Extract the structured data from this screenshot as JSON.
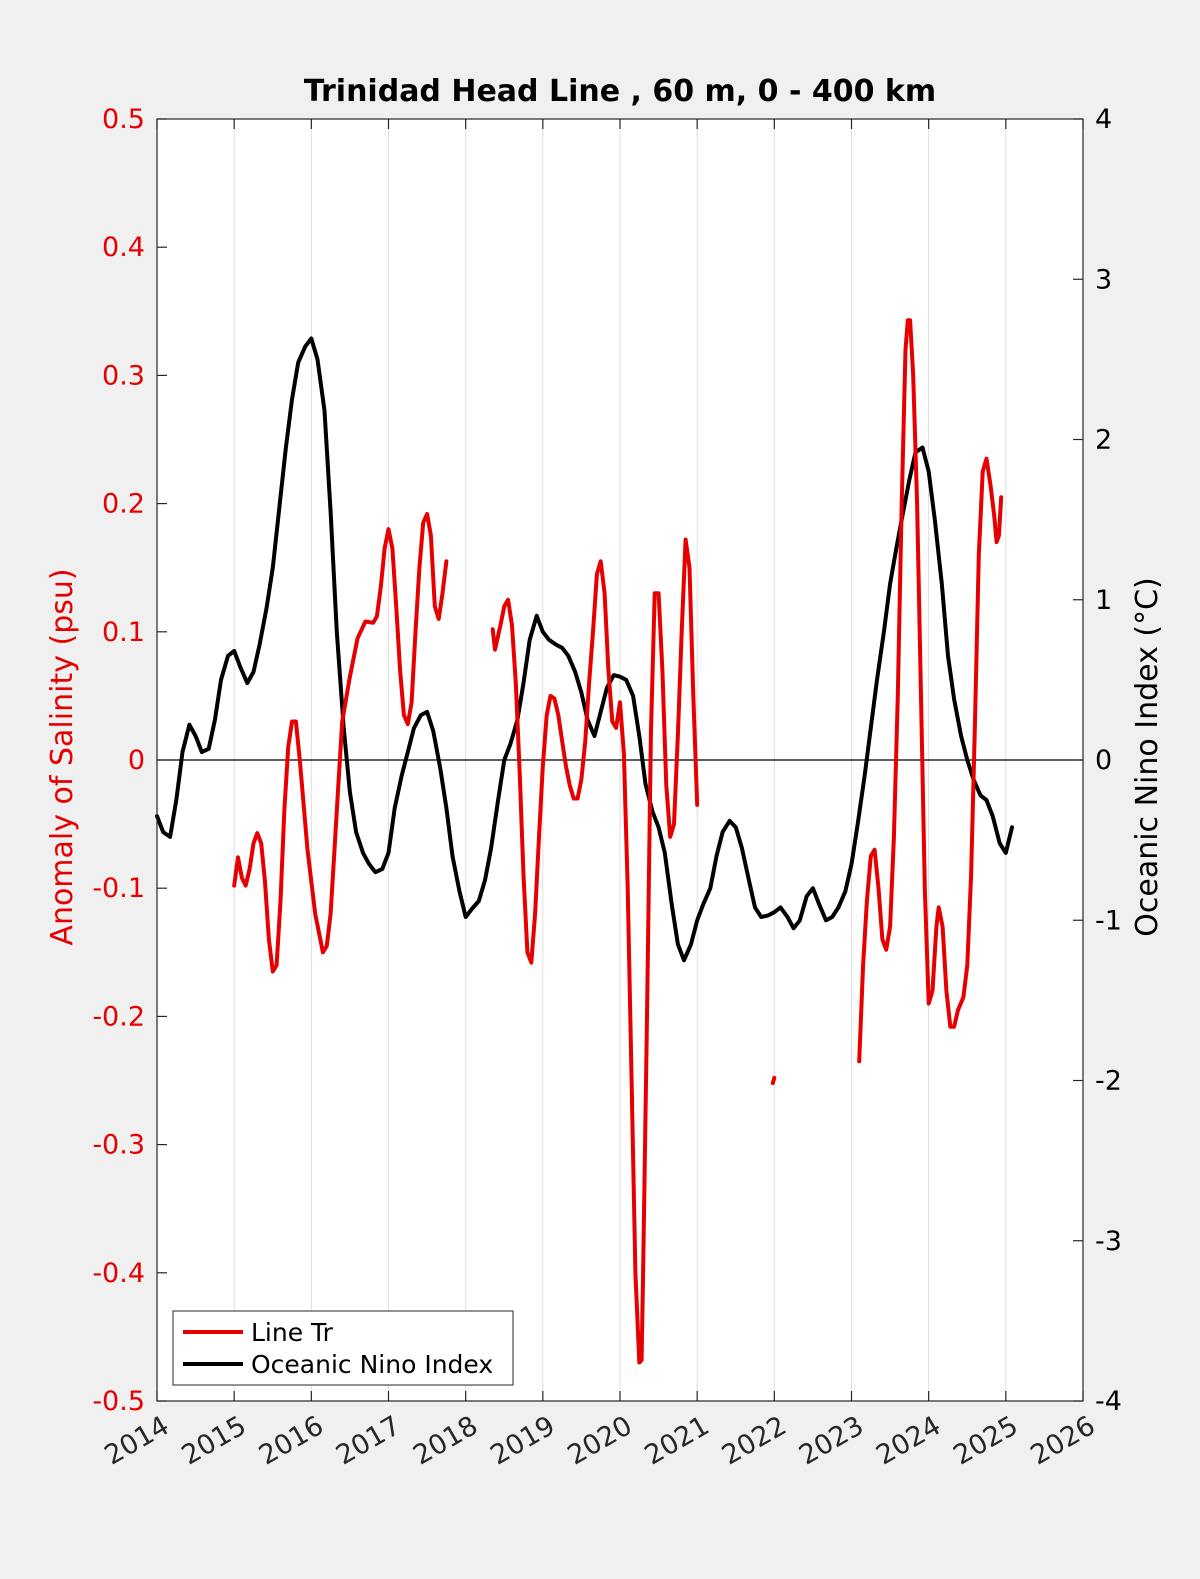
{
  "chart_data": {
    "type": "line",
    "title": "Trinidad Head Line , 60 m, 0 - 400 km",
    "xlabel": "",
    "ylabel_left": "Anomaly of Salinity (psu)",
    "ylabel_right": "Oceanic Nino Index (°C)",
    "xlim": [
      2014,
      2026
    ],
    "ylim_left": [
      -0.5,
      0.5
    ],
    "ylim_right": [
      -4,
      4
    ],
    "x_ticks": [
      "2014",
      "2015",
      "2016",
      "2017",
      "2018",
      "2019",
      "2020",
      "2021",
      "2022",
      "2023",
      "2024",
      "2025",
      "2026"
    ],
    "y_ticks_left": [
      "0.5",
      "0.4",
      "0.3",
      "0.2",
      "0.1",
      "0",
      "-0.1",
      "-0.2",
      "-0.3",
      "-0.4",
      "-0.5"
    ],
    "y_ticks_right": [
      "4",
      "3",
      "2",
      "1",
      "0",
      "-1",
      "-2",
      "-3",
      "-4"
    ],
    "grid_x": true,
    "zero_line": true,
    "legend_position": "bottom-left",
    "colors": {
      "salinity": "#e60000",
      "oni": "#000000",
      "left_axis": "#e60000",
      "right_axis": "#000000"
    },
    "series": [
      {
        "name": "Line Tr",
        "axis": "left",
        "segments": [
          [
            [
              2015.0,
              -0.098
            ],
            [
              2015.05,
              -0.076
            ],
            [
              2015.1,
              -0.092
            ],
            [
              2015.15,
              -0.098
            ],
            [
              2015.2,
              -0.085
            ],
            [
              2015.25,
              -0.065
            ],
            [
              2015.3,
              -0.057
            ],
            [
              2015.35,
              -0.065
            ],
            [
              2015.4,
              -0.095
            ],
            [
              2015.45,
              -0.14
            ],
            [
              2015.5,
              -0.165
            ],
            [
              2015.55,
              -0.16
            ],
            [
              2015.6,
              -0.11
            ],
            [
              2015.65,
              -0.04
            ],
            [
              2015.7,
              0.01
            ],
            [
              2015.75,
              0.03
            ],
            [
              2015.8,
              0.03
            ],
            [
              2015.85,
              0.0
            ],
            [
              2015.95,
              -0.07
            ],
            [
              2016.05,
              -0.12
            ],
            [
              2016.15,
              -0.15
            ],
            [
              2016.2,
              -0.145
            ],
            [
              2016.25,
              -0.12
            ],
            [
              2016.3,
              -0.07
            ],
            [
              2016.35,
              -0.02
            ],
            [
              2016.4,
              0.03
            ],
            [
              2016.5,
              0.065
            ],
            [
              2016.6,
              0.095
            ],
            [
              2016.7,
              0.108
            ],
            [
              2016.8,
              0.107
            ],
            [
              2016.85,
              0.112
            ],
            [
              2016.9,
              0.135
            ],
            [
              2016.95,
              0.165
            ],
            [
              2017.0,
              0.18
            ],
            [
              2017.05,
              0.165
            ],
            [
              2017.1,
              0.12
            ],
            [
              2017.15,
              0.07
            ],
            [
              2017.2,
              0.035
            ],
            [
              2017.25,
              0.028
            ],
            [
              2017.3,
              0.045
            ],
            [
              2017.35,
              0.1
            ],
            [
              2017.4,
              0.15
            ],
            [
              2017.45,
              0.185
            ],
            [
              2017.5,
              0.192
            ],
            [
              2017.55,
              0.175
            ],
            [
              2017.6,
              0.12
            ],
            [
              2017.65,
              0.11
            ],
            [
              2017.7,
              0.13
            ],
            [
              2017.75,
              0.155
            ]
          ],
          [
            [
              2018.35,
              0.102
            ],
            [
              2018.38,
              0.086
            ],
            [
              2018.45,
              0.105
            ],
            [
              2018.5,
              0.12
            ],
            [
              2018.55,
              0.125
            ],
            [
              2018.6,
              0.105
            ],
            [
              2018.65,
              0.06
            ],
            [
              2018.7,
              -0.01
            ],
            [
              2018.75,
              -0.09
            ],
            [
              2018.8,
              -0.15
            ],
            [
              2018.85,
              -0.158
            ],
            [
              2018.9,
              -0.12
            ],
            [
              2018.95,
              -0.06
            ],
            [
              2019.0,
              -0.005
            ],
            [
              2019.05,
              0.035
            ],
            [
              2019.1,
              0.05
            ],
            [
              2019.15,
              0.048
            ],
            [
              2019.2,
              0.035
            ],
            [
              2019.25,
              0.015
            ],
            [
              2019.3,
              -0.005
            ],
            [
              2019.35,
              -0.02
            ],
            [
              2019.4,
              -0.03
            ],
            [
              2019.45,
              -0.03
            ],
            [
              2019.5,
              -0.015
            ],
            [
              2019.55,
              0.015
            ],
            [
              2019.6,
              0.06
            ],
            [
              2019.65,
              0.1
            ],
            [
              2019.7,
              0.145
            ],
            [
              2019.75,
              0.155
            ],
            [
              2019.8,
              0.13
            ],
            [
              2019.85,
              0.07
            ],
            [
              2019.9,
              0.03
            ],
            [
              2019.95,
              0.025
            ],
            [
              2020.0,
              0.045
            ],
            [
              2020.05,
              0.005
            ],
            [
              2020.1,
              -0.1
            ],
            [
              2020.15,
              -0.25
            ],
            [
              2020.2,
              -0.4
            ],
            [
              2020.25,
              -0.47
            ],
            [
              2020.28,
              -0.468
            ],
            [
              2020.3,
              -0.4
            ],
            [
              2020.35,
              -0.2
            ],
            [
              2020.4,
              0.02
            ],
            [
              2020.45,
              0.13
            ],
            [
              2020.5,
              0.13
            ],
            [
              2020.55,
              0.07
            ],
            [
              2020.6,
              -0.02
            ],
            [
              2020.65,
              -0.06
            ],
            [
              2020.7,
              -0.05
            ],
            [
              2020.75,
              0.02
            ],
            [
              2020.8,
              0.1
            ],
            [
              2020.85,
              0.172
            ],
            [
              2020.9,
              0.15
            ],
            [
              2020.95,
              0.05
            ],
            [
              2021.0,
              -0.035
            ]
          ],
          [
            [
              2021.98,
              -0.252
            ],
            [
              2022.0,
              -0.248
            ]
          ],
          [
            [
              2023.1,
              -0.235
            ],
            [
              2023.15,
              -0.16
            ],
            [
              2023.2,
              -0.11
            ],
            [
              2023.25,
              -0.075
            ],
            [
              2023.3,
              -0.07
            ],
            [
              2023.35,
              -0.1
            ],
            [
              2023.4,
              -0.14
            ],
            [
              2023.45,
              -0.148
            ],
            [
              2023.5,
              -0.13
            ],
            [
              2023.55,
              -0.06
            ],
            [
              2023.6,
              0.05
            ],
            [
              2023.65,
              0.2
            ],
            [
              2023.7,
              0.32
            ],
            [
              2023.73,
              0.343
            ],
            [
              2023.76,
              0.343
            ],
            [
              2023.8,
              0.3
            ],
            [
              2023.85,
              0.2
            ],
            [
              2023.9,
              0.05
            ],
            [
              2023.95,
              -0.1
            ],
            [
              2024.0,
              -0.19
            ],
            [
              2024.05,
              -0.18
            ],
            [
              2024.1,
              -0.13
            ],
            [
              2024.13,
              -0.115
            ],
            [
              2024.18,
              -0.13
            ],
            [
              2024.23,
              -0.18
            ],
            [
              2024.28,
              -0.208
            ],
            [
              2024.33,
              -0.208
            ],
            [
              2024.38,
              -0.195
            ],
            [
              2024.45,
              -0.185
            ],
            [
              2024.5,
              -0.16
            ],
            [
              2024.55,
              -0.09
            ],
            [
              2024.6,
              0.03
            ],
            [
              2024.65,
              0.16
            ],
            [
              2024.7,
              0.225
            ],
            [
              2024.75,
              0.235
            ],
            [
              2024.8,
              0.215
            ],
            [
              2024.85,
              0.19
            ],
            [
              2024.88,
              0.17
            ],
            [
              2024.91,
              0.175
            ],
            [
              2024.94,
              0.205
            ]
          ]
        ]
      },
      {
        "name": "Oceanic Nino Index",
        "axis": "right",
        "x": [
          2014.0,
          2014.08,
          2014.17,
          2014.25,
          2014.33,
          2014.42,
          2014.5,
          2014.58,
          2014.67,
          2014.75,
          2014.83,
          2014.92,
          2015.0,
          2015.08,
          2015.17,
          2015.25,
          2015.33,
          2015.42,
          2015.5,
          2015.58,
          2015.67,
          2015.75,
          2015.83,
          2015.92,
          2016.0,
          2016.08,
          2016.17,
          2016.25,
          2016.33,
          2016.42,
          2016.5,
          2016.58,
          2016.67,
          2016.75,
          2016.83,
          2016.92,
          2017.0,
          2017.08,
          2017.17,
          2017.25,
          2017.33,
          2017.42,
          2017.5,
          2017.58,
          2017.67,
          2017.75,
          2017.83,
          2017.92,
          2018.0,
          2018.08,
          2018.17,
          2018.25,
          2018.33,
          2018.42,
          2018.5,
          2018.58,
          2018.67,
          2018.75,
          2018.83,
          2018.92,
          2019.0,
          2019.08,
          2019.17,
          2019.25,
          2019.33,
          2019.42,
          2019.5,
          2019.58,
          2019.67,
          2019.75,
          2019.83,
          2019.92,
          2020.0,
          2020.08,
          2020.17,
          2020.25,
          2020.33,
          2020.42,
          2020.5,
          2020.58,
          2020.67,
          2020.75,
          2020.83,
          2020.92,
          2021.0,
          2021.08,
          2021.17,
          2021.25,
          2021.33,
          2021.42,
          2021.5,
          2021.58,
          2021.67,
          2021.75,
          2021.83,
          2021.92,
          2022.0,
          2022.08,
          2022.17,
          2022.25,
          2022.33,
          2022.42,
          2022.5,
          2022.58,
          2022.67,
          2022.75,
          2022.83,
          2022.92,
          2023.0,
          2023.08,
          2023.17,
          2023.25,
          2023.33,
          2023.42,
          2023.5,
          2023.58,
          2023.67,
          2023.75,
          2023.83,
          2023.92,
          2024.0,
          2024.08,
          2024.17,
          2024.25,
          2024.33,
          2024.42,
          2024.5,
          2024.58,
          2024.67,
          2024.75,
          2024.83,
          2024.92,
          2025.0,
          2025.08
        ],
        "values": [
          -0.35,
          -0.45,
          -0.48,
          -0.25,
          0.05,
          0.22,
          0.15,
          0.05,
          0.07,
          0.25,
          0.5,
          0.65,
          0.68,
          0.58,
          0.48,
          0.55,
          0.72,
          0.95,
          1.2,
          1.55,
          1.95,
          2.25,
          2.48,
          2.58,
          2.63,
          2.5,
          2.18,
          1.55,
          0.8,
          0.2,
          -0.2,
          -0.45,
          -0.58,
          -0.65,
          -0.7,
          -0.68,
          -0.58,
          -0.3,
          -0.1,
          0.05,
          0.2,
          0.28,
          0.3,
          0.18,
          -0.05,
          -0.3,
          -0.6,
          -0.82,
          -0.98,
          -0.93,
          -0.88,
          -0.75,
          -0.55,
          -0.25,
          0.0,
          0.1,
          0.25,
          0.48,
          0.75,
          0.9,
          0.8,
          0.75,
          0.72,
          0.7,
          0.65,
          0.55,
          0.42,
          0.25,
          0.15,
          0.3,
          0.45,
          0.53,
          0.52,
          0.5,
          0.4,
          0.15,
          -0.15,
          -0.32,
          -0.42,
          -0.58,
          -0.9,
          -1.15,
          -1.25,
          -1.15,
          -1.0,
          -0.9,
          -0.8,
          -0.6,
          -0.45,
          -0.38,
          -0.42,
          -0.55,
          -0.75,
          -0.92,
          -0.98,
          -0.97,
          -0.95,
          -0.92,
          -0.98,
          -1.05,
          -1.0,
          -0.85,
          -0.8,
          -0.9,
          -1.0,
          -0.98,
          -0.92,
          -0.82,
          -0.65,
          -0.4,
          -0.1,
          0.2,
          0.5,
          0.8,
          1.1,
          1.32,
          1.55,
          1.75,
          1.92,
          1.95,
          1.8,
          1.5,
          1.1,
          0.65,
          0.38,
          0.15,
          0.0,
          -0.12,
          -0.22,
          -0.25,
          -0.35,
          -0.52,
          -0.58,
          -0.42
        ]
      }
    ],
    "legend": [
      "Line Tr",
      "Oceanic Nino Index"
    ]
  }
}
